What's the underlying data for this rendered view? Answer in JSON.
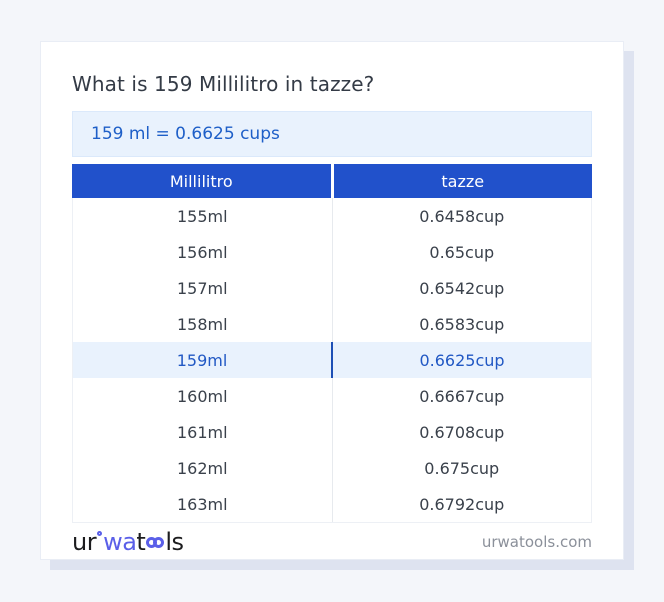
{
  "colors": {
    "page_bg": "#f4f6fa",
    "card_bg": "#ffffff",
    "shadow": "#dee3f0",
    "header_blue": "#2151cb",
    "result_bg": "#e9f2fd",
    "result_text": "#1e5fc8",
    "highlight_bg": "#e9f2fd",
    "highlight_text": "#2158c4",
    "highlight_divider": "#1d4fb5",
    "row_text": "#3a414b",
    "divider": "#e7eaee",
    "footer_text": "#8b909a",
    "logo_blue": "#5a5fe8",
    "logo_dark": "#1c1c1e",
    "title_text": "#343b46"
  },
  "main": {
    "title": "What is 159 Millilitro in tazze?",
    "result": "159 ml = 0.6625 cups"
  },
  "table": {
    "headers": [
      "Millilitro",
      "tazze"
    ],
    "rows": [
      {
        "ml": "155ml",
        "cup": "0.6458cup",
        "highlight": false
      },
      {
        "ml": "156ml",
        "cup": "0.65cup",
        "highlight": false
      },
      {
        "ml": "157ml",
        "cup": "0.6542cup",
        "highlight": false
      },
      {
        "ml": "158ml",
        "cup": "0.6583cup",
        "highlight": false
      },
      {
        "ml": "159ml",
        "cup": "0.6625cup",
        "highlight": true
      },
      {
        "ml": "160ml",
        "cup": "0.6667cup",
        "highlight": false
      },
      {
        "ml": "161ml",
        "cup": "0.6708cup",
        "highlight": false
      },
      {
        "ml": "162ml",
        "cup": "0.675cup",
        "highlight": false
      },
      {
        "ml": "163ml",
        "cup": "0.6792cup",
        "highlight": false
      }
    ]
  },
  "footer": {
    "logo": {
      "ur": "ur",
      "wa": "wa",
      "t": "t",
      "ls": "ls"
    },
    "site": "urwatools.com"
  }
}
